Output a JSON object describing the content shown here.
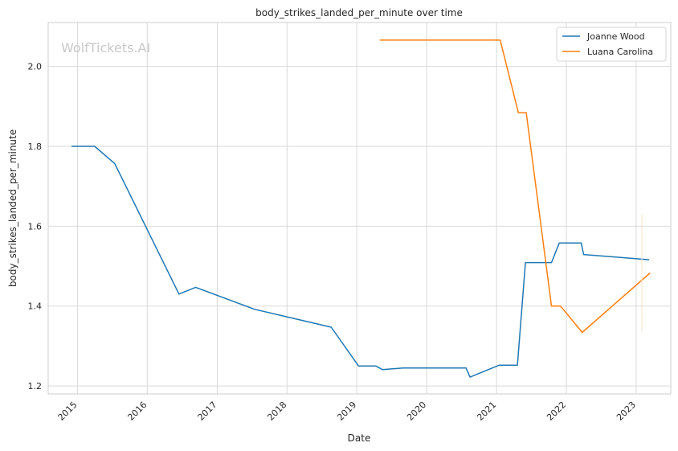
{
  "watermark": "WolfTickets.AI",
  "chart_data": {
    "type": "line",
    "title": "body_strikes_landed_per_minute over time",
    "xlabel": "Date",
    "ylabel": "body_strikes_landed_per_minute",
    "xlim": [
      "2014-08-01",
      "2023-07-01"
    ],
    "ylim": [
      1.18,
      2.11
    ],
    "x_ticks": [
      "2015",
      "2016",
      "2017",
      "2018",
      "2019",
      "2020",
      "2021",
      "2022",
      "2023"
    ],
    "y_ticks": [
      "1.2",
      "1.4",
      "1.6",
      "1.8",
      "2.0"
    ],
    "grid": true,
    "legend_position": "top-right",
    "series": [
      {
        "name": "Joanne Wood",
        "color": "#1f77b4",
        "points": [
          [
            "2014-12-01",
            1.8
          ],
          [
            "2015-04-01",
            1.8
          ],
          [
            "2015-07-15",
            1.757
          ],
          [
            "2016-06-15",
            1.43
          ],
          [
            "2016-09-10",
            1.447
          ],
          [
            "2017-07-15",
            1.392
          ],
          [
            "2018-08-20",
            1.347
          ],
          [
            "2019-01-10",
            1.25
          ],
          [
            "2019-04-10",
            1.25
          ],
          [
            "2019-05-15",
            1.241
          ],
          [
            "2019-09-01",
            1.245
          ],
          [
            "2020-07-25",
            1.245
          ],
          [
            "2020-08-15",
            1.222
          ],
          [
            "2021-01-15",
            1.252
          ],
          [
            "2021-04-20",
            1.252
          ],
          [
            "2021-06-01",
            1.509
          ],
          [
            "2021-10-15",
            1.509
          ],
          [
            "2021-11-25",
            1.558
          ],
          [
            "2022-03-20",
            1.558
          ],
          [
            "2022-04-01",
            1.529
          ],
          [
            "2023-03-10",
            1.516
          ]
        ]
      },
      {
        "name": "Luana Carolina",
        "color": "#ff7f0e",
        "points": [
          [
            "2019-05-01",
            2.066
          ],
          [
            "2021-01-20",
            2.066
          ],
          [
            "2021-04-25",
            1.884
          ],
          [
            "2021-06-05",
            1.884
          ],
          [
            "2021-10-15",
            1.4
          ],
          [
            "2021-12-01",
            1.4
          ],
          [
            "2022-03-25",
            1.334
          ],
          [
            "2023-03-15",
            1.483
          ]
        ]
      }
    ]
  }
}
